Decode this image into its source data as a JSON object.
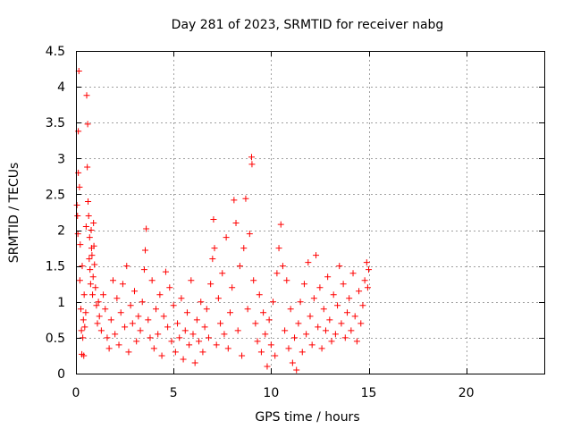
{
  "chart_data": {
    "type": "scatter",
    "title": "Day 281 of 2023, SRMTID for receiver nabg",
    "xlabel": "GPS time / hours",
    "ylabel": "SRMTID / TECUs",
    "xlim": [
      0,
      24
    ],
    "ylim": [
      0,
      4.5
    ],
    "xticks": [
      0,
      5,
      10,
      15,
      20
    ],
    "yticks": [
      0,
      0.5,
      1,
      1.5,
      2,
      2.5,
      3,
      3.5,
      4,
      4.5
    ],
    "xtick_labels": [
      "0",
      "5",
      "10",
      "15",
      "20"
    ],
    "ytick_labels": [
      "0",
      "0.5",
      "1",
      "1.5",
      "2",
      "2.5",
      "3",
      "3.5",
      "4",
      "4.5"
    ],
    "grid": true,
    "marker": "+",
    "color": "#ff0000",
    "series": [
      {
        "name": "SRMTID",
        "points": [
          [
            0.05,
            2.35
          ],
          [
            0.08,
            2.2
          ],
          [
            0.1,
            1.95
          ],
          [
            0.12,
            2.8
          ],
          [
            0.12,
            3.38
          ],
          [
            0.15,
            4.22
          ],
          [
            0.18,
            2.6
          ],
          [
            0.2,
            1.3
          ],
          [
            0.22,
            1.8
          ],
          [
            0.25,
            0.9
          ],
          [
            0.28,
            0.6
          ],
          [
            0.3,
            0.27
          ],
          [
            0.32,
            1.5
          ],
          [
            0.35,
            0.5
          ],
          [
            0.38,
            0.75
          ],
          [
            0.4,
            0.25
          ],
          [
            0.42,
            1.1
          ],
          [
            0.45,
            0.65
          ],
          [
            0.5,
            0.85
          ],
          [
            0.52,
            2.05
          ],
          [
            0.55,
            3.88
          ],
          [
            0.58,
            2.88
          ],
          [
            0.6,
            3.48
          ],
          [
            0.62,
            2.4
          ],
          [
            0.65,
            2.2
          ],
          [
            0.68,
            1.6
          ],
          [
            0.7,
            1.9
          ],
          [
            0.72,
            1.45
          ],
          [
            0.75,
            1.25
          ],
          [
            0.78,
            2.0
          ],
          [
            0.8,
            1.75
          ],
          [
            0.82,
            1.65
          ],
          [
            0.85,
            1.1
          ],
          [
            0.88,
            1.35
          ],
          [
            0.9,
            2.1
          ],
          [
            0.92,
            1.78
          ],
          [
            0.95,
            1.52
          ],
          [
            1.0,
            1.2
          ],
          [
            1.05,
            0.95
          ],
          [
            1.1,
            0.7
          ],
          [
            1.15,
            1.0
          ],
          [
            1.2,
            0.8
          ],
          [
            1.3,
            0.6
          ],
          [
            1.4,
            1.1
          ],
          [
            1.5,
            0.9
          ],
          [
            1.6,
            0.5
          ],
          [
            1.7,
            0.35
          ],
          [
            1.8,
            0.75
          ],
          [
            1.9,
            1.3
          ],
          [
            2.0,
            0.55
          ],
          [
            2.1,
            1.05
          ],
          [
            2.2,
            0.4
          ],
          [
            2.3,
            0.85
          ],
          [
            2.4,
            1.25
          ],
          [
            2.5,
            0.65
          ],
          [
            2.6,
            1.5
          ],
          [
            2.7,
            0.3
          ],
          [
            2.8,
            0.95
          ],
          [
            2.9,
            0.7
          ],
          [
            3.0,
            1.15
          ],
          [
            3.1,
            0.45
          ],
          [
            3.2,
            0.8
          ],
          [
            3.3,
            0.6
          ],
          [
            3.4,
            1.0
          ],
          [
            3.5,
            1.45
          ],
          [
            3.55,
            1.72
          ],
          [
            3.6,
            2.02
          ],
          [
            3.7,
            0.75
          ],
          [
            3.8,
            0.5
          ],
          [
            3.9,
            1.3
          ],
          [
            4.0,
            0.35
          ],
          [
            4.1,
            0.9
          ],
          [
            4.2,
            0.55
          ],
          [
            4.3,
            1.1
          ],
          [
            4.4,
            0.25
          ],
          [
            4.5,
            0.8
          ],
          [
            4.6,
            1.42
          ],
          [
            4.7,
            0.65
          ],
          [
            4.8,
            1.2
          ],
          [
            4.9,
            0.45
          ],
          [
            5.0,
            0.95
          ],
          [
            5.1,
            0.3
          ],
          [
            5.2,
            0.7
          ],
          [
            5.3,
            0.5
          ],
          [
            5.4,
            1.05
          ],
          [
            5.5,
            0.2
          ],
          [
            5.6,
            0.6
          ],
          [
            5.7,
            0.85
          ],
          [
            5.8,
            0.4
          ],
          [
            5.9,
            1.3
          ],
          [
            6.0,
            0.55
          ],
          [
            6.1,
            0.15
          ],
          [
            6.2,
            0.75
          ],
          [
            6.3,
            0.45
          ],
          [
            6.4,
            1.0
          ],
          [
            6.5,
            0.3
          ],
          [
            6.6,
            0.65
          ],
          [
            6.7,
            0.9
          ],
          [
            6.8,
            0.5
          ],
          [
            6.9,
            1.25
          ],
          [
            7.0,
            1.6
          ],
          [
            7.05,
            2.15
          ],
          [
            7.1,
            1.75
          ],
          [
            7.2,
            0.4
          ],
          [
            7.3,
            1.05
          ],
          [
            7.4,
            0.7
          ],
          [
            7.5,
            1.4
          ],
          [
            7.6,
            0.55
          ],
          [
            7.7,
            1.9
          ],
          [
            7.8,
            0.35
          ],
          [
            7.9,
            0.85
          ],
          [
            8.0,
            1.2
          ],
          [
            8.1,
            2.42
          ],
          [
            8.2,
            2.1
          ],
          [
            8.3,
            0.6
          ],
          [
            8.4,
            1.5
          ],
          [
            8.5,
            0.25
          ],
          [
            8.6,
            1.75
          ],
          [
            8.7,
            2.44
          ],
          [
            8.8,
            0.9
          ],
          [
            8.9,
            1.95
          ],
          [
            9.0,
            3.02
          ],
          [
            9.02,
            2.92
          ],
          [
            9.1,
            1.3
          ],
          [
            9.2,
            0.7
          ],
          [
            9.3,
            0.45
          ],
          [
            9.4,
            1.1
          ],
          [
            9.5,
            0.3
          ],
          [
            9.6,
            0.85
          ],
          [
            9.7,
            0.55
          ],
          [
            9.8,
            0.1
          ],
          [
            9.9,
            0.75
          ],
          [
            10.0,
            0.4
          ],
          [
            10.1,
            1.0
          ],
          [
            10.2,
            0.25
          ],
          [
            10.3,
            1.4
          ],
          [
            10.4,
            1.75
          ],
          [
            10.5,
            2.08
          ],
          [
            10.6,
            1.5
          ],
          [
            10.7,
            0.6
          ],
          [
            10.8,
            1.3
          ],
          [
            10.9,
            0.35
          ],
          [
            11.0,
            0.9
          ],
          [
            11.1,
            0.15
          ],
          [
            11.2,
            0.5
          ],
          [
            11.3,
            0.05
          ],
          [
            11.4,
            0.7
          ],
          [
            11.5,
            1.0
          ],
          [
            11.6,
            0.3
          ],
          [
            11.7,
            1.25
          ],
          [
            11.8,
            0.55
          ],
          [
            11.9,
            1.55
          ],
          [
            12.0,
            0.8
          ],
          [
            12.1,
            0.4
          ],
          [
            12.2,
            1.05
          ],
          [
            12.3,
            1.65
          ],
          [
            12.4,
            0.65
          ],
          [
            12.5,
            1.2
          ],
          [
            12.6,
            0.35
          ],
          [
            12.7,
            0.9
          ],
          [
            12.8,
            0.6
          ],
          [
            12.9,
            1.35
          ],
          [
            13.0,
            0.75
          ],
          [
            13.1,
            0.45
          ],
          [
            13.2,
            1.1
          ],
          [
            13.3,
            0.55
          ],
          [
            13.4,
            0.95
          ],
          [
            13.5,
            1.5
          ],
          [
            13.6,
            0.7
          ],
          [
            13.7,
            1.25
          ],
          [
            13.8,
            0.5
          ],
          [
            13.9,
            0.85
          ],
          [
            14.0,
            1.05
          ],
          [
            14.1,
            0.6
          ],
          [
            14.2,
            1.4
          ],
          [
            14.3,
            0.8
          ],
          [
            14.4,
            0.45
          ],
          [
            14.5,
            1.15
          ],
          [
            14.6,
            0.7
          ],
          [
            14.7,
            0.95
          ],
          [
            14.8,
            1.3
          ],
          [
            14.9,
            1.55
          ],
          [
            14.95,
            1.2
          ],
          [
            15.0,
            1.45
          ]
        ]
      }
    ]
  }
}
